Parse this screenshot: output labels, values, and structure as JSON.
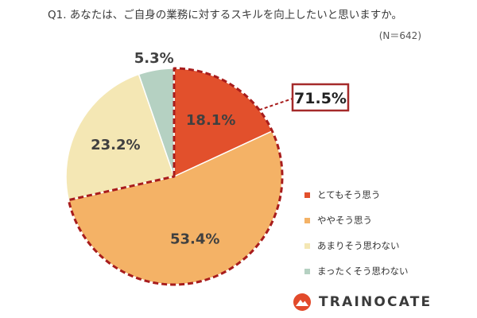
{
  "title": "Q1. あなたは、ご自身の業務に対するスキルを向上したいと思いますか。",
  "sample_size": "(N＝642)",
  "callout": "71.5%",
  "brand": "TRAINOCATE",
  "colors": {
    "callout_border": "#a52a2a",
    "dash": "#a81c1c",
    "brand_mark": "#e24a2b"
  },
  "chart_data": {
    "type": "pie",
    "title": "Q1. あなたは、ご自身の業務に対するスキルを向上したいと思いますか。",
    "legend_position": "right",
    "slices": [
      {
        "label": "とてもそう思う",
        "value": 18.1,
        "display": "18.1%",
        "color": "#e2502c",
        "highlighted": true
      },
      {
        "label": "ややそう思う",
        "value": 53.4,
        "display": "53.4%",
        "color": "#f4b266",
        "highlighted": true
      },
      {
        "label": "あまりそう思わない",
        "value": 23.2,
        "display": "23.2%",
        "color": "#f4e7b4",
        "highlighted": false
      },
      {
        "label": "まったくそう思わない",
        "value": 5.3,
        "display": "5.3%",
        "color": "#b5d1c2",
        "highlighted": false
      }
    ]
  }
}
